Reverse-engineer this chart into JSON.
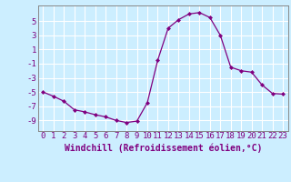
{
  "x": [
    0,
    1,
    2,
    3,
    4,
    5,
    6,
    7,
    8,
    9,
    10,
    11,
    12,
    13,
    14,
    15,
    16,
    17,
    18,
    19,
    20,
    21,
    22,
    23
  ],
  "y": [
    -5.0,
    -5.6,
    -6.3,
    -7.5,
    -7.8,
    -8.2,
    -8.5,
    -9.0,
    -9.3,
    -9.1,
    -6.5,
    -0.5,
    4.0,
    5.2,
    6.0,
    6.2,
    5.5,
    3.0,
    -1.5,
    -2.0,
    -2.2,
    -4.0,
    -5.2,
    -5.3
  ],
  "line_color": "#800080",
  "marker": "D",
  "marker_size": 2.0,
  "bg_color": "#cceeff",
  "grid_color": "#ffffff",
  "tick_color": "#800080",
  "xlabel": "Windchill (Refroidissement éolien,°C)",
  "ylabel_ticks": [
    "-9",
    "-7",
    "-5",
    "-3",
    "-1",
    "1",
    "3",
    "5"
  ],
  "yticks": [
    -9,
    -7,
    -5,
    -3,
    -1,
    1,
    3,
    5
  ],
  "ylim": [
    -10.5,
    7.2
  ],
  "xlim": [
    -0.5,
    23.5
  ],
  "font_color": "#800080",
  "font_size": 6.5,
  "xlabel_fontsize": 7.0
}
